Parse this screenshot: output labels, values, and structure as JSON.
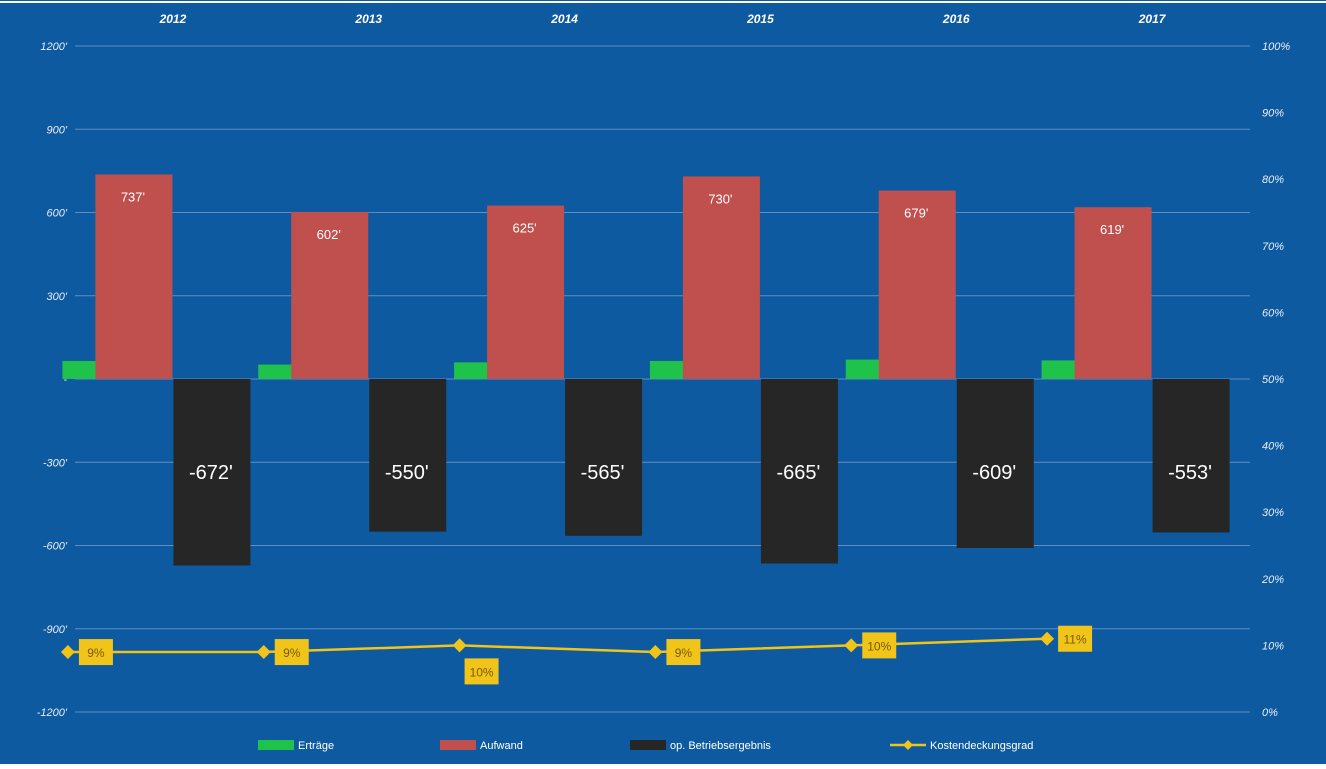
{
  "chart_data": {
    "type": "bar",
    "categories": [
      "2012",
      "2013",
      "2014",
      "2015",
      "2016",
      "2017"
    ],
    "y_ticks": [
      "1200'",
      "900'",
      "600'",
      "300'",
      "-",
      "-300'",
      "-600'",
      "-900'",
      "-1200'"
    ],
    "y_tick_values": [
      1200,
      900,
      600,
      300,
      0,
      -300,
      -600,
      -900,
      -1200
    ],
    "y2_ticks": [
      "100%",
      "90%",
      "80%",
      "70%",
      "60%",
      "50%",
      "40%",
      "30%",
      "20%",
      "10%",
      "0%"
    ],
    "ylim": [
      -1200,
      1200
    ],
    "y2lim": [
      0,
      100
    ],
    "series": [
      {
        "name": "Erträge",
        "values": [
          65,
          52,
          60,
          65,
          70,
          67
        ],
        "labels": [
          "65'",
          "52'",
          "60'",
          "65'",
          "70'",
          "67'"
        ],
        "color": "#1fc24a"
      },
      {
        "name": "Aufwand",
        "values": [
          737,
          602,
          625,
          730,
          679,
          619
        ],
        "labels": [
          "737'",
          "602'",
          "625'",
          "730'",
          "679'",
          "619'"
        ],
        "color": "#c0504d"
      },
      {
        "name": "op. Betriebsergebnis",
        "values": [
          -672,
          -550,
          -565,
          -665,
          -609,
          -553
        ],
        "labels": [
          "-672'",
          "-550'",
          "-565'",
          "-665'",
          "-609'",
          "-553'"
        ],
        "color": "#262626"
      },
      {
        "name": "Kostendeckungsgrad",
        "values": [
          9,
          9,
          10,
          9,
          10,
          11
        ],
        "labels": [
          "9%",
          "9%",
          "10%",
          "9%",
          "10%",
          "11%"
        ],
        "color": "#f0c419",
        "axis": "right"
      }
    ],
    "grid": true,
    "legend": "bottom"
  }
}
